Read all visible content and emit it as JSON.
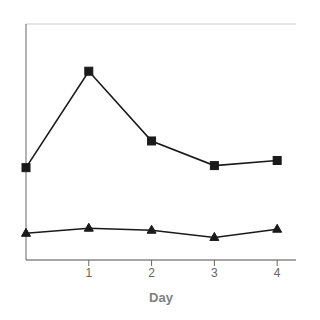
{
  "chart_data": {
    "type": "line",
    "x": [
      0,
      1,
      2,
      3,
      4
    ],
    "xlabel": "Day",
    "xlim": [
      0,
      4.3
    ],
    "xticks": [
      1,
      2,
      3,
      4
    ],
    "ylim": [
      0,
      11.5
    ],
    "yticks": [
      2.3,
      4.6,
      6.9,
      9.2,
      11.5
    ],
    "grid": true,
    "tick_labels": "x",
    "series": [
      {
        "color": "#1a1a1a",
        "marker": "square",
        "values": [
          4.5,
          9.2,
          5.8,
          4.6,
          4.85
        ]
      },
      {
        "color": "#1a1a1a",
        "marker": "triangle",
        "values": [
          1.3,
          1.55,
          1.45,
          1.1,
          1.5
        ]
      }
    ]
  }
}
